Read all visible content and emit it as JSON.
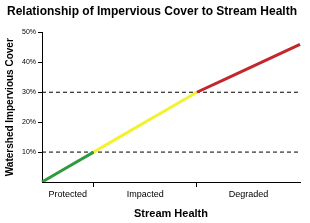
{
  "chart_data": {
    "type": "line",
    "title": "Relationship of Impervious Cover to Stream Health",
    "x_label": "Stream Health",
    "y_label": "Watershed Impervious Cover",
    "categories": [
      null,
      "Protected",
      null,
      null,
      "Impacted",
      null,
      null,
      null,
      "Degraded",
      null,
      null
    ],
    "series": [
      {
        "color": "#2e9b3e",
        "values": [
          0,
          5,
          10,
          null,
          null,
          null,
          null,
          null,
          null,
          null,
          null
        ]
      },
      {
        "color": "#f2f230",
        "values": [
          null,
          null,
          10,
          15,
          20,
          25,
          30,
          null,
          null,
          null,
          null
        ]
      },
      {
        "color": "#c4262e",
        "values": [
          null,
          null,
          null,
          null,
          null,
          null,
          30,
          34,
          38,
          42,
          46
        ]
      }
    ],
    "hlines": [
      10,
      30
    ],
    "ylim": [
      0,
      50
    ],
    "yticks": [
      {
        "value": 10,
        "label": "10%"
      },
      {
        "value": 20,
        "label": "20%"
      },
      {
        "value": 30,
        "label": "30%"
      },
      {
        "value": 40,
        "label": "40%"
      },
      {
        "value": 50,
        "label": "50%"
      }
    ],
    "grid": false
  }
}
